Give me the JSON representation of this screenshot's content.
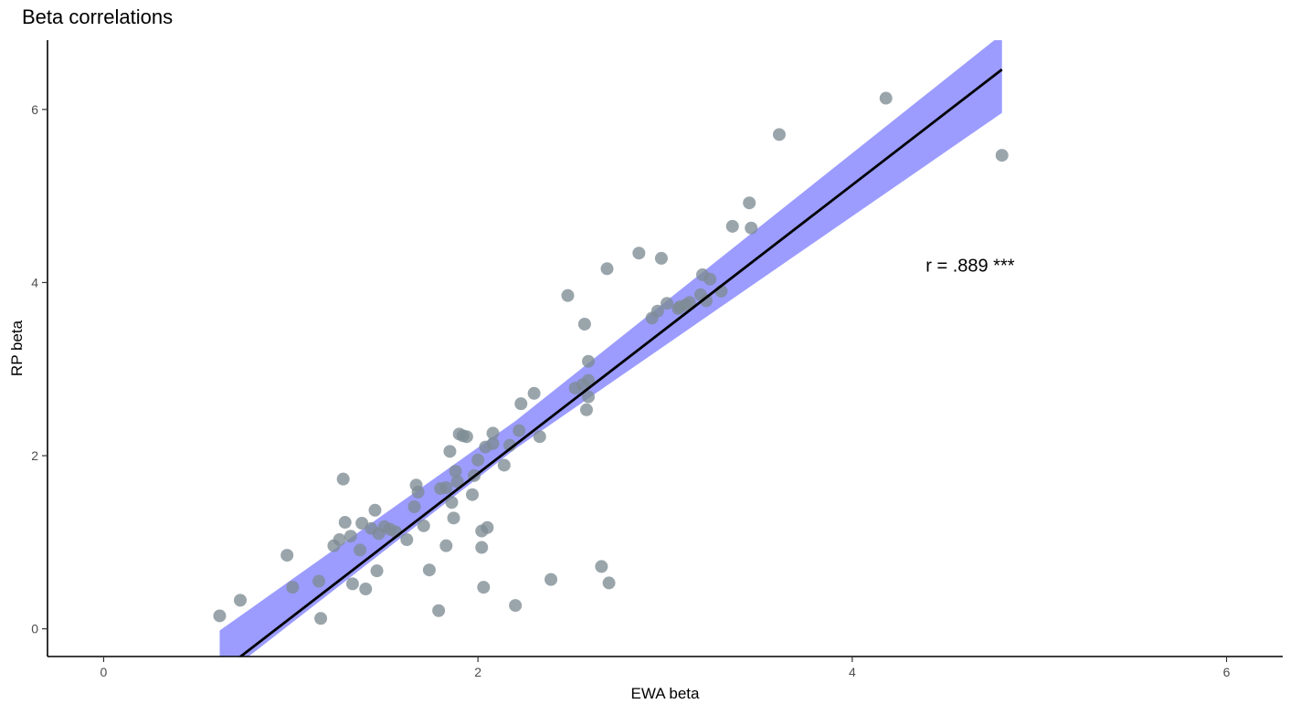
{
  "chart_data": {
    "type": "scatter",
    "title": "Beta correlations",
    "xlabel": "EWA beta",
    "ylabel": "RP beta",
    "xlim": [
      -0.3,
      6.3
    ],
    "ylim": [
      -0.32,
      6.8
    ],
    "xticks": [
      0,
      2,
      4,
      6
    ],
    "yticks": [
      0,
      2,
      4,
      6
    ],
    "grid": false,
    "annotation": {
      "text": "r = .889 ***",
      "x": 4.63,
      "y": 4.2
    },
    "regression": {
      "x_range": [
        0.62,
        4.8
      ],
      "slope": 1.667,
      "intercept": -1.54
    },
    "confidence_band": {
      "x": [
        0.62,
        2.2,
        4.8
      ],
      "lower": [
        -0.58,
        2.08,
        5.96
      ],
      "upper": [
        -0.02,
        2.4,
        6.87
      ]
    },
    "colors": {
      "points": "#7d8c93",
      "band": "#8b8bff",
      "line": "#000000"
    },
    "points": [
      [
        0.62,
        0.15
      ],
      [
        0.73,
        0.33
      ],
      [
        0.98,
        0.85
      ],
      [
        1.01,
        0.48
      ],
      [
        1.15,
        0.55
      ],
      [
        1.16,
        0.12
      ],
      [
        1.23,
        0.96
      ],
      [
        1.26,
        1.03
      ],
      [
        1.28,
        1.73
      ],
      [
        1.29,
        1.23
      ],
      [
        1.32,
        1.07
      ],
      [
        1.33,
        0.52
      ],
      [
        1.37,
        0.91
      ],
      [
        1.38,
        1.22
      ],
      [
        1.4,
        0.46
      ],
      [
        1.43,
        1.16
      ],
      [
        1.45,
        1.37
      ],
      [
        1.46,
        0.67
      ],
      [
        1.47,
        1.1
      ],
      [
        1.5,
        1.18
      ],
      [
        1.53,
        1.15
      ],
      [
        1.56,
        1.12
      ],
      [
        1.62,
        1.03
      ],
      [
        1.66,
        1.41
      ],
      [
        1.67,
        1.66
      ],
      [
        1.68,
        1.58
      ],
      [
        1.71,
        1.19
      ],
      [
        1.74,
        0.68
      ],
      [
        1.79,
        0.21
      ],
      [
        1.8,
        1.62
      ],
      [
        1.83,
        0.96
      ],
      [
        1.83,
        1.63
      ],
      [
        1.85,
        2.05
      ],
      [
        1.86,
        1.46
      ],
      [
        1.87,
        1.28
      ],
      [
        1.88,
        1.82
      ],
      [
        1.89,
        1.7
      ],
      [
        1.9,
        2.25
      ],
      [
        1.92,
        2.23
      ],
      [
        1.94,
        2.22
      ],
      [
        1.97,
        1.55
      ],
      [
        1.98,
        1.77
      ],
      [
        2.0,
        1.95
      ],
      [
        2.02,
        0.94
      ],
      [
        2.02,
        1.13
      ],
      [
        2.03,
        0.48
      ],
      [
        2.04,
        2.1
      ],
      [
        2.05,
        1.17
      ],
      [
        2.08,
        2.14
      ],
      [
        2.08,
        2.26
      ],
      [
        2.14,
        1.89
      ],
      [
        2.17,
        2.12
      ],
      [
        2.2,
        0.27
      ],
      [
        2.22,
        2.29
      ],
      [
        2.23,
        2.6
      ],
      [
        2.3,
        2.72
      ],
      [
        2.33,
        2.22
      ],
      [
        2.39,
        0.57
      ],
      [
        2.48,
        3.85
      ],
      [
        2.52,
        2.78
      ],
      [
        2.56,
        2.82
      ],
      [
        2.57,
        3.52
      ],
      [
        2.58,
        2.53
      ],
      [
        2.59,
        2.68
      ],
      [
        2.59,
        2.87
      ],
      [
        2.59,
        3.09
      ],
      [
        2.66,
        0.72
      ],
      [
        2.69,
        4.16
      ],
      [
        2.7,
        0.53
      ],
      [
        2.86,
        4.34
      ],
      [
        2.93,
        3.59
      ],
      [
        2.96,
        3.67
      ],
      [
        2.98,
        4.28
      ],
      [
        3.01,
        3.76
      ],
      [
        3.07,
        3.7
      ],
      [
        3.08,
        3.72
      ],
      [
        3.11,
        3.74
      ],
      [
        3.13,
        3.77
      ],
      [
        3.19,
        3.86
      ],
      [
        3.2,
        4.09
      ],
      [
        3.22,
        3.79
      ],
      [
        3.24,
        4.04
      ],
      [
        3.3,
        3.9
      ],
      [
        3.36,
        4.65
      ],
      [
        3.45,
        4.92
      ],
      [
        3.46,
        4.63
      ],
      [
        3.61,
        5.71
      ],
      [
        4.18,
        6.13
      ],
      [
        4.8,
        5.47
      ]
    ]
  }
}
